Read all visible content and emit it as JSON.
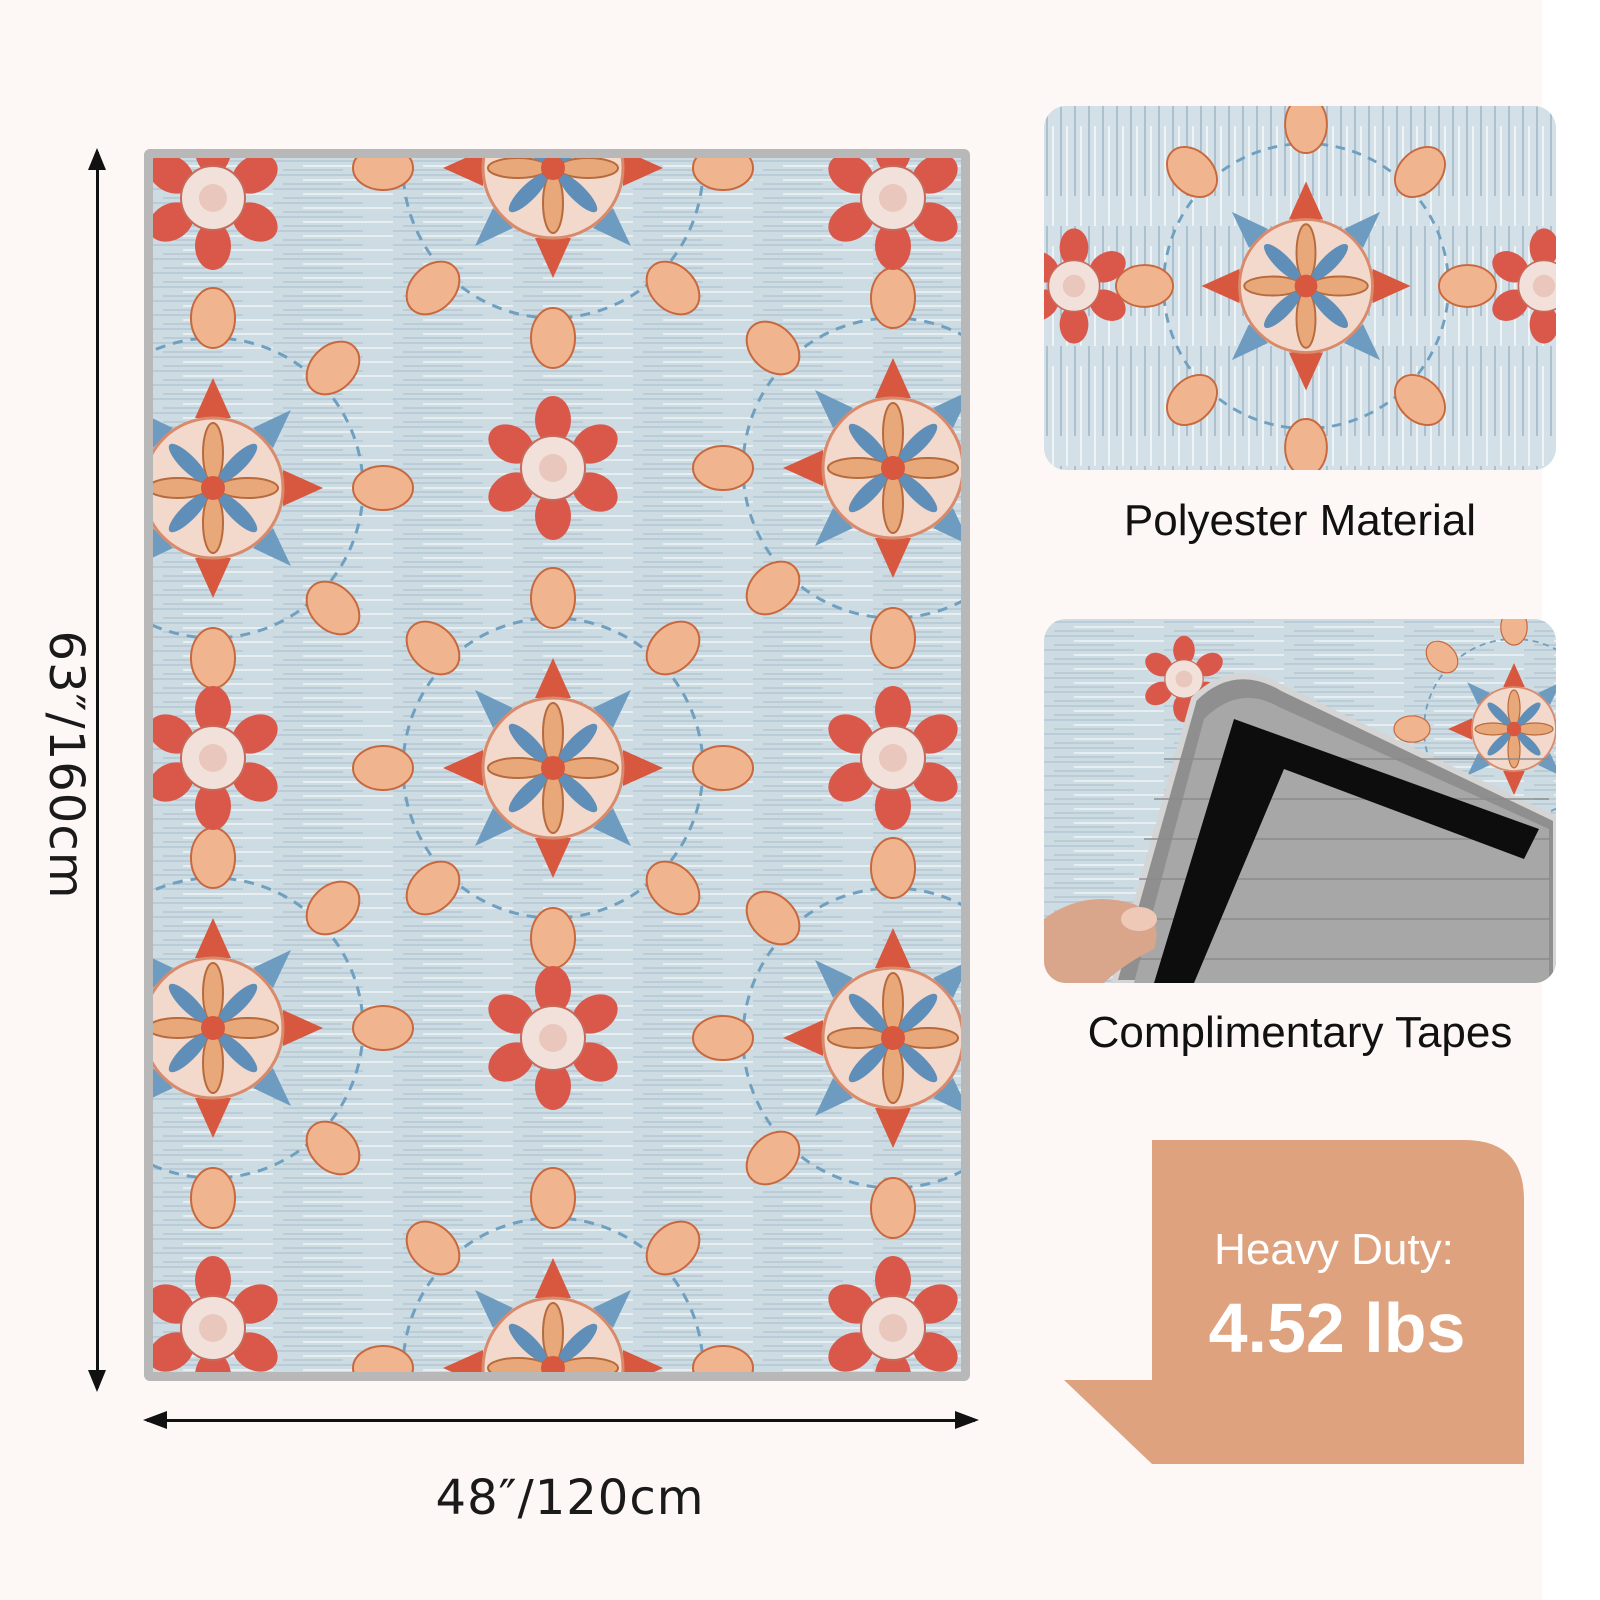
{
  "dimensions": {
    "height_label": "63″/160cm",
    "width_label": "48″/120cm"
  },
  "features": {
    "material_caption": "Polyester Material",
    "tapes_caption": "Complimentary Tapes"
  },
  "weight": {
    "label": "Heavy Duty:",
    "value": "4.52 lbs"
  },
  "colors": {
    "background": "#fdf8f5",
    "rug_base": "#cfdde4",
    "badge": "#dea27f",
    "rug_border": "#b8b8b8"
  }
}
